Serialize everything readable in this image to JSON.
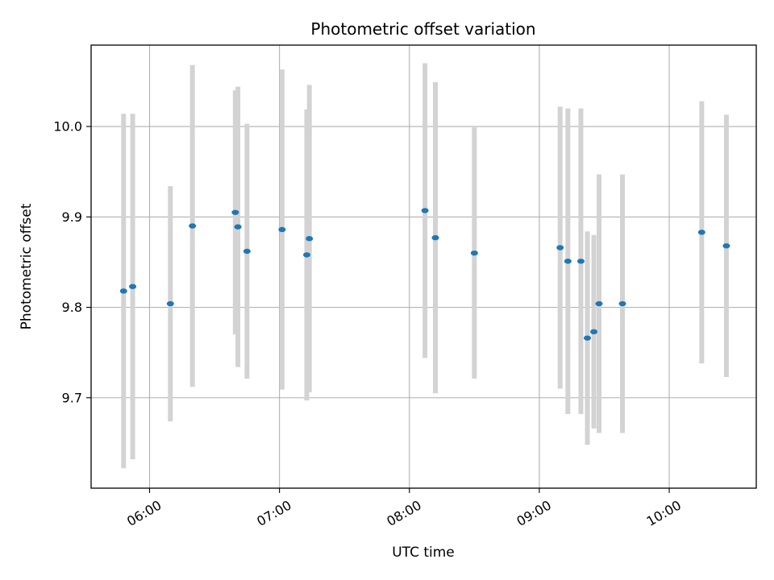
{
  "chart_data": {
    "type": "scatter",
    "title": "Photometric offset variation",
    "xlabel": "UTC time",
    "ylabel": "Photometric offset",
    "x_unit": "hours UTC",
    "xlim": [
      5.55,
      10.67
    ],
    "ylim": [
      9.6,
      10.09
    ],
    "x_ticks": [
      {
        "value": 6,
        "label": "06:00"
      },
      {
        "value": 7,
        "label": "07:00"
      },
      {
        "value": 8,
        "label": "08:00"
      },
      {
        "value": 9,
        "label": "09:00"
      },
      {
        "value": 10,
        "label": "10:00"
      }
    ],
    "y_ticks": [
      {
        "value": 9.7,
        "label": "9.7"
      },
      {
        "value": 9.8,
        "label": "9.8"
      },
      {
        "value": 9.9,
        "label": "9.9"
      },
      {
        "value": 10.0,
        "label": "10.0"
      }
    ],
    "grid": true,
    "colors": {
      "point": "#1f77b4",
      "errorbar": "#d3d3d3",
      "grid": "#b0b0b0"
    },
    "points": [
      {
        "x": 5.8,
        "y": 9.818,
        "yerr": 0.196
      },
      {
        "x": 5.87,
        "y": 9.823,
        "yerr": 0.191
      },
      {
        "x": 6.16,
        "y": 9.804,
        "yerr": 0.13
      },
      {
        "x": 6.33,
        "y": 9.89,
        "yerr": 0.178
      },
      {
        "x": 6.66,
        "y": 9.905,
        "yerr": 0.135
      },
      {
        "x": 6.68,
        "y": 9.889,
        "yerr": 0.155
      },
      {
        "x": 6.75,
        "y": 9.862,
        "yerr": 0.141
      },
      {
        "x": 7.02,
        "y": 9.886,
        "yerr": 0.177
      },
      {
        "x": 7.21,
        "y": 9.858,
        "yerr": 0.161
      },
      {
        "x": 7.23,
        "y": 9.876,
        "yerr": 0.17
      },
      {
        "x": 8.12,
        "y": 9.907,
        "yerr": 0.163
      },
      {
        "x": 8.2,
        "y": 9.877,
        "yerr": 0.172
      },
      {
        "x": 8.5,
        "y": 9.86,
        "yerr": 0.139
      },
      {
        "x": 9.16,
        "y": 9.866,
        "yerr": 0.156
      },
      {
        "x": 9.22,
        "y": 9.851,
        "yerr": 0.169
      },
      {
        "x": 9.32,
        "y": 9.851,
        "yerr": 0.169
      },
      {
        "x": 9.37,
        "y": 9.766,
        "yerr": 0.118
      },
      {
        "x": 9.42,
        "y": 9.773,
        "yerr": 0.107
      },
      {
        "x": 9.46,
        "y": 9.804,
        "yerr": 0.143
      },
      {
        "x": 9.64,
        "y": 9.804,
        "yerr": 0.143
      },
      {
        "x": 10.25,
        "y": 9.883,
        "yerr": 0.145
      },
      {
        "x": 10.44,
        "y": 9.868,
        "yerr": 0.145
      }
    ]
  }
}
